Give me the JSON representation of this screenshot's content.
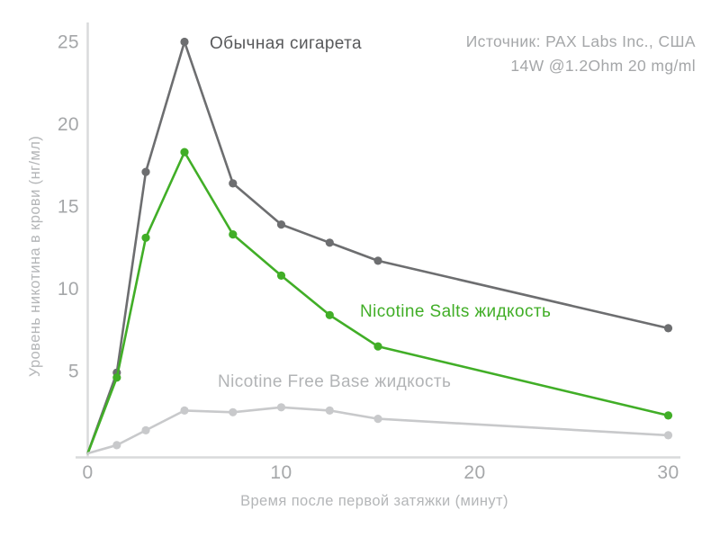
{
  "header": {
    "source_line1": "Источник: PAX Labs Inc., США",
    "source_line2": "14W @1.2Ohm 20 mg/ml"
  },
  "chart_data": {
    "type": "line",
    "title": "",
    "xlabel": "Время после первой затяжки (минут)",
    "ylabel": "Уровень никотина в крови (нг/мл)",
    "x": [
      0,
      1.5,
      3,
      5,
      7.5,
      10,
      12.5,
      15,
      30
    ],
    "x_ticks": [
      0,
      10,
      20,
      30
    ],
    "y_ticks": [
      5,
      10,
      15,
      20,
      25
    ],
    "xlim": [
      0,
      30.6
    ],
    "ylim": [
      0,
      25.3
    ],
    "grid": false,
    "legend_position": "inline-annotations",
    "axis_color": "#d9dadb",
    "series": [
      {
        "name": "Обычная сигарета",
        "color": "#6d6e70",
        "label_color": "#58595b",
        "values": [
          0,
          4.9,
          17.1,
          25,
          16.4,
          13.9,
          12.8,
          11.7,
          7.6
        ]
      },
      {
        "name": "Nicotine Salts жидкость",
        "color": "#41ae27",
        "label_color": "#41ae27",
        "values": [
          0,
          4.6,
          13.1,
          18.3,
          13.3,
          10.8,
          8.4,
          6.5,
          2.3
        ]
      },
      {
        "name": "Nicotine Free Base жидкость",
        "color": "#c8c9cb",
        "label_color": "#b2b4b6",
        "values": [
          0,
          0.5,
          1.4,
          2.6,
          2.5,
          2.8,
          2.6,
          2.1,
          1.1
        ]
      }
    ]
  }
}
